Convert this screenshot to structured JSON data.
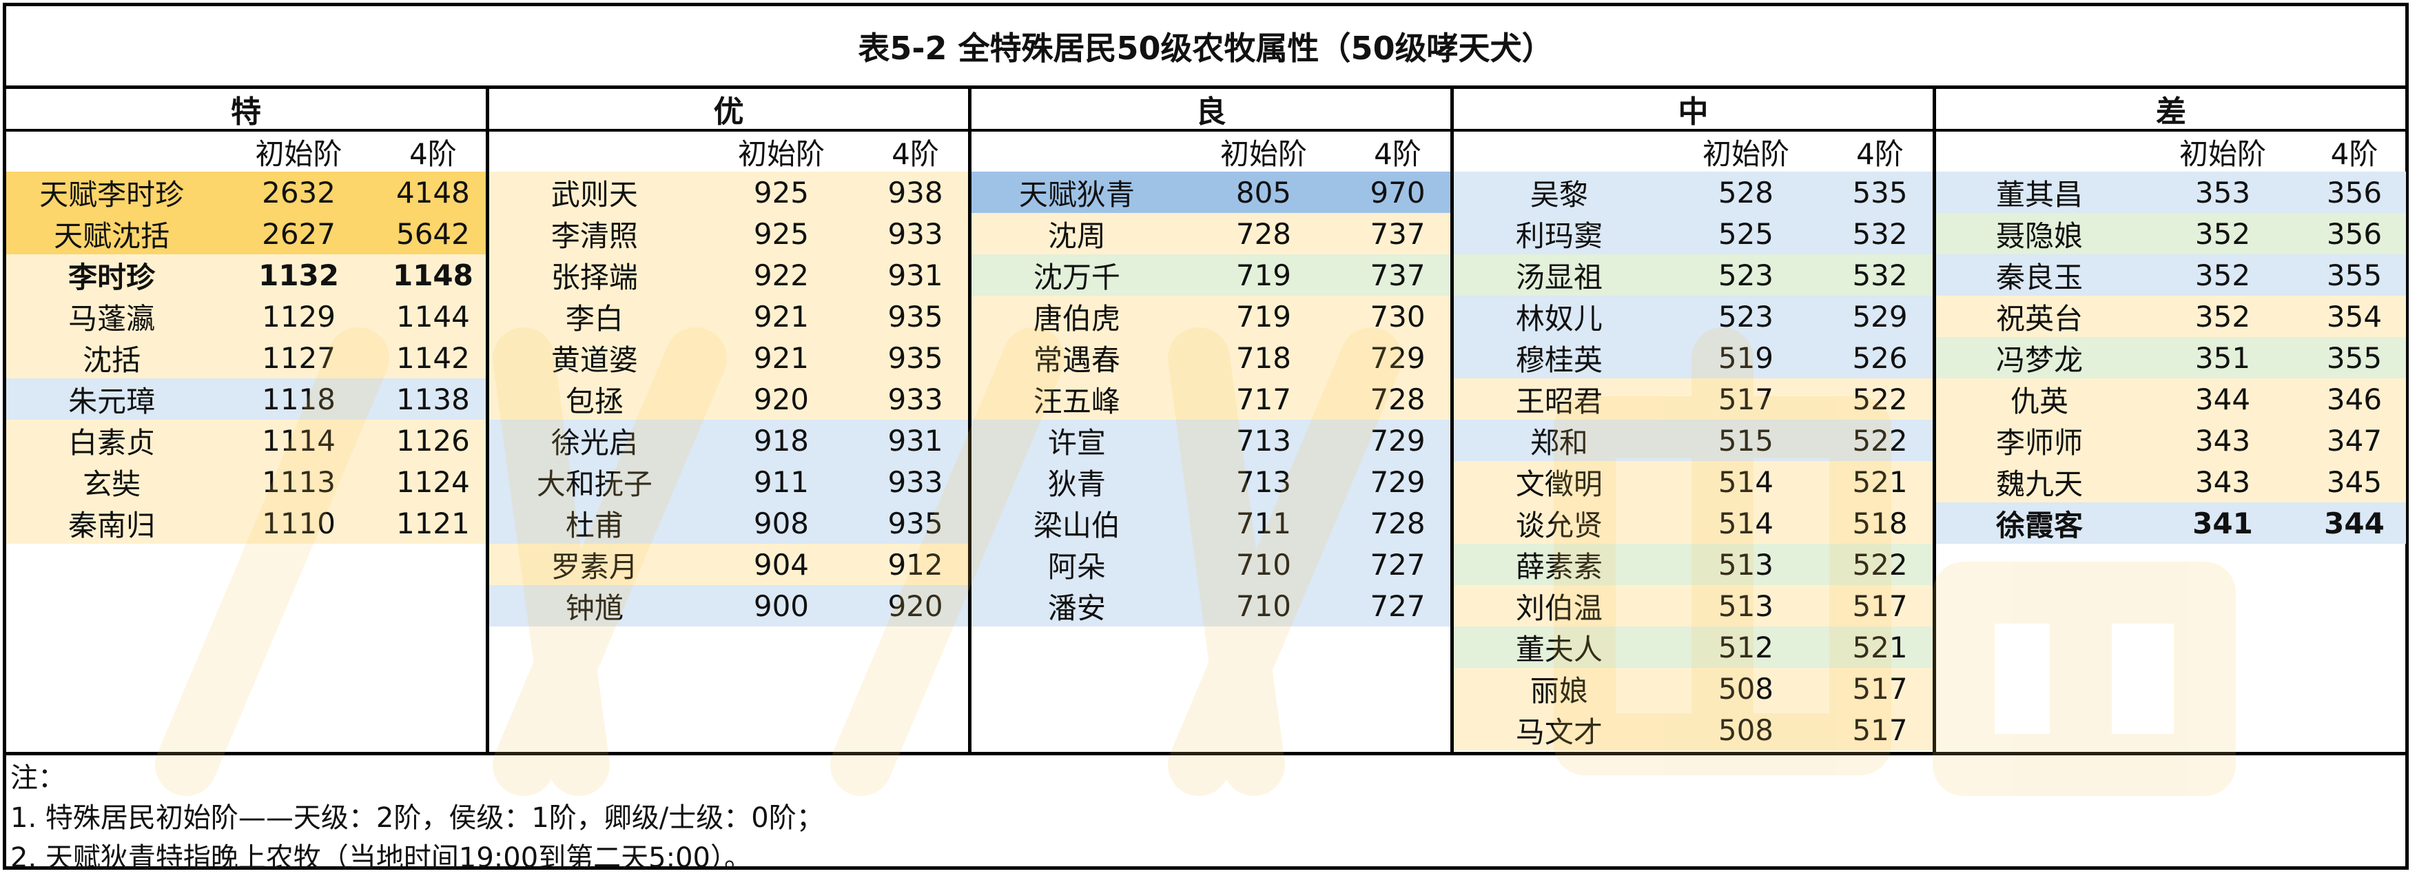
{
  "title": "表5-2 全特殊居民50级农牧属性（50级哮天犬）",
  "column_headers": {
    "initial": "初始阶",
    "level4": "4阶"
  },
  "colors": {
    "orange": "#fde9a8",
    "light_orange": "#fff1cf",
    "blue": "#dbe8f5",
    "green": "#e3f0da",
    "strong_orange": "#fcd56b",
    "strong_blue": "#9ec2e6",
    "watermark": "#f8c75a"
  },
  "groups": [
    {
      "label": "特",
      "rows": [
        {
          "name": "天赋李时珍",
          "initial": "2632",
          "level4": "4148",
          "bg": "strong_orange",
          "bold": false
        },
        {
          "name": "天赋沈括",
          "initial": "2627",
          "level4": "5642",
          "bg": "strong_orange",
          "bold": false
        },
        {
          "name": "李时珍",
          "initial": "1132",
          "level4": "1148",
          "bg": "light_orange",
          "bold": true
        },
        {
          "name": "马蓬瀛",
          "initial": "1129",
          "level4": "1144",
          "bg": "light_orange",
          "bold": false
        },
        {
          "name": "沈括",
          "initial": "1127",
          "level4": "1142",
          "bg": "light_orange",
          "bold": false
        },
        {
          "name": "朱元璋",
          "initial": "1118",
          "level4": "1138",
          "bg": "blue",
          "bold": false
        },
        {
          "name": "白素贞",
          "initial": "1114",
          "level4": "1126",
          "bg": "light_orange",
          "bold": false
        },
        {
          "name": "玄奘",
          "initial": "1113",
          "level4": "1124",
          "bg": "light_orange",
          "bold": false
        },
        {
          "name": "秦南归",
          "initial": "1110",
          "level4": "1121",
          "bg": "light_orange",
          "bold": false
        }
      ]
    },
    {
      "label": "优",
      "rows": [
        {
          "name": "武则天",
          "initial": "925",
          "level4": "938",
          "bg": "light_orange",
          "bold": false
        },
        {
          "name": "李清照",
          "initial": "925",
          "level4": "933",
          "bg": "light_orange",
          "bold": false
        },
        {
          "name": "张择端",
          "initial": "922",
          "level4": "931",
          "bg": "light_orange",
          "bold": false
        },
        {
          "name": "李白",
          "initial": "921",
          "level4": "935",
          "bg": "light_orange",
          "bold": false
        },
        {
          "name": "黄道婆",
          "initial": "921",
          "level4": "935",
          "bg": "light_orange",
          "bold": false
        },
        {
          "name": "包拯",
          "initial": "920",
          "level4": "933",
          "bg": "light_orange",
          "bold": false
        },
        {
          "name": "徐光启",
          "initial": "918",
          "level4": "931",
          "bg": "blue",
          "bold": false
        },
        {
          "name": "大和抚子",
          "initial": "911",
          "level4": "933",
          "bg": "blue",
          "bold": false
        },
        {
          "name": "杜甫",
          "initial": "908",
          "level4": "935",
          "bg": "blue",
          "bold": false
        },
        {
          "name": "罗素月",
          "initial": "904",
          "level4": "912",
          "bg": "light_orange",
          "bold": false
        },
        {
          "name": "钟馗",
          "initial": "900",
          "level4": "920",
          "bg": "blue",
          "bold": false
        }
      ]
    },
    {
      "label": "良",
      "rows": [
        {
          "name": "天赋狄青",
          "initial": "805",
          "level4": "970",
          "bg": "strong_blue",
          "bold": false
        },
        {
          "name": "沈周",
          "initial": "728",
          "level4": "737",
          "bg": "light_orange",
          "bold": false
        },
        {
          "name": "沈万千",
          "initial": "719",
          "level4": "737",
          "bg": "green",
          "bold": false
        },
        {
          "name": "唐伯虎",
          "initial": "719",
          "level4": "730",
          "bg": "light_orange",
          "bold": false
        },
        {
          "name": "常遇春",
          "initial": "718",
          "level4": "729",
          "bg": "light_orange",
          "bold": false
        },
        {
          "name": "汪五峰",
          "initial": "717",
          "level4": "728",
          "bg": "light_orange",
          "bold": false
        },
        {
          "name": "许宣",
          "initial": "713",
          "level4": "729",
          "bg": "blue",
          "bold": false
        },
        {
          "name": "狄青",
          "initial": "713",
          "level4": "729",
          "bg": "blue",
          "bold": false
        },
        {
          "name": "梁山伯",
          "initial": "711",
          "level4": "728",
          "bg": "blue",
          "bold": false
        },
        {
          "name": "阿朵",
          "initial": "710",
          "level4": "727",
          "bg": "blue",
          "bold": false
        },
        {
          "name": "潘安",
          "initial": "710",
          "level4": "727",
          "bg": "blue",
          "bold": false
        }
      ]
    },
    {
      "label": "中",
      "rows": [
        {
          "name": "吴黎",
          "initial": "528",
          "level4": "535",
          "bg": "blue",
          "bold": false
        },
        {
          "name": "利玛窦",
          "initial": "525",
          "level4": "532",
          "bg": "blue",
          "bold": false
        },
        {
          "name": "汤显祖",
          "initial": "523",
          "level4": "532",
          "bg": "green",
          "bold": false
        },
        {
          "name": "林奴儿",
          "initial": "523",
          "level4": "529",
          "bg": "blue",
          "bold": false
        },
        {
          "name": "穆桂英",
          "initial": "519",
          "level4": "526",
          "bg": "blue",
          "bold": false
        },
        {
          "name": "王昭君",
          "initial": "517",
          "level4": "522",
          "bg": "light_orange",
          "bold": false
        },
        {
          "name": "郑和",
          "initial": "515",
          "level4": "522",
          "bg": "blue",
          "bold": false
        },
        {
          "name": "文徵明",
          "initial": "514",
          "level4": "521",
          "bg": "light_orange",
          "bold": false
        },
        {
          "name": "谈允贤",
          "initial": "514",
          "level4": "518",
          "bg": "light_orange",
          "bold": false
        },
        {
          "name": "薛素素",
          "initial": "513",
          "level4": "522",
          "bg": "green",
          "bold": false
        },
        {
          "name": "刘伯温",
          "initial": "513",
          "level4": "517",
          "bg": "light_orange",
          "bold": false
        },
        {
          "name": "董夫人",
          "initial": "512",
          "level4": "521",
          "bg": "green",
          "bold": false
        },
        {
          "name": "丽娘",
          "initial": "508",
          "level4": "517",
          "bg": "light_orange",
          "bold": false
        },
        {
          "name": "马文才",
          "initial": "508",
          "level4": "517",
          "bg": "light_orange",
          "bold": false
        }
      ]
    },
    {
      "label": "差",
      "rows": [
        {
          "name": "董其昌",
          "initial": "353",
          "level4": "356",
          "bg": "blue",
          "bold": false
        },
        {
          "name": "聂隐娘",
          "initial": "352",
          "level4": "356",
          "bg": "green",
          "bold": false
        },
        {
          "name": "秦良玉",
          "initial": "352",
          "level4": "355",
          "bg": "blue",
          "bold": false
        },
        {
          "name": "祝英台",
          "initial": "352",
          "level4": "354",
          "bg": "light_orange",
          "bold": false
        },
        {
          "name": "冯梦龙",
          "initial": "351",
          "level4": "355",
          "bg": "green",
          "bold": false
        },
        {
          "name": "仇英",
          "initial": "344",
          "level4": "346",
          "bg": "light_orange",
          "bold": false
        },
        {
          "name": "李师师",
          "initial": "343",
          "level4": "347",
          "bg": "light_orange",
          "bold": false
        },
        {
          "name": "魏九天",
          "initial": "343",
          "level4": "345",
          "bg": "light_orange",
          "bold": false
        },
        {
          "name": "徐霞客",
          "initial": "341",
          "level4": "344",
          "bg": "blue",
          "bold": true
        }
      ]
    }
  ],
  "notes": [
    "注：",
    "1. 特殊居民初始阶——天级：2阶，侯级：1阶，卿级/士级：0阶；",
    "2. 天赋狄青特指晚上农牧（当地时间19:00到第二天5:00）。"
  ]
}
